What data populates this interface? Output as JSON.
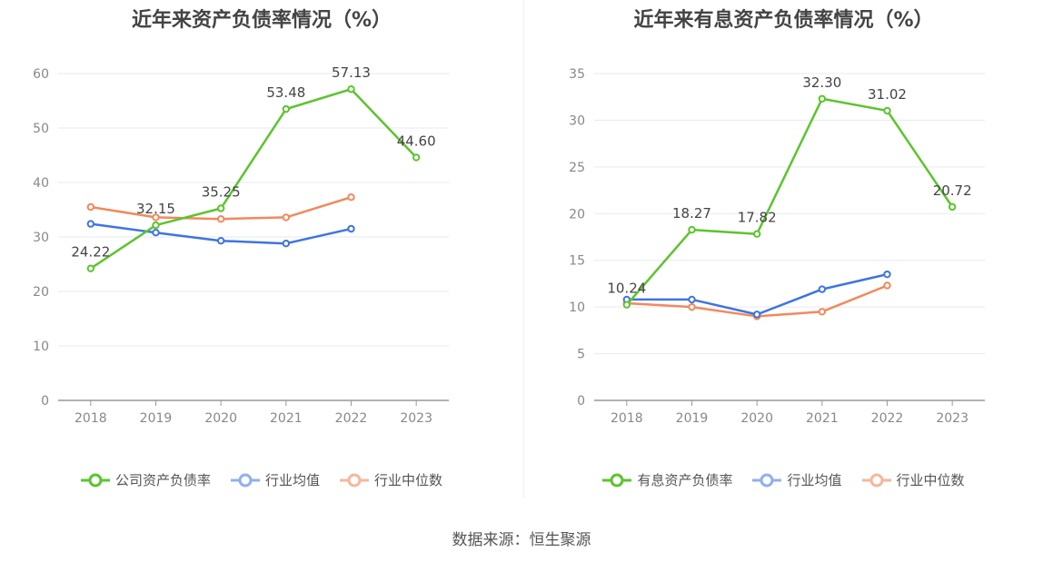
{
  "colors": {
    "company": "#5cc42e",
    "industry_avg": "#3f74e0",
    "industry_median": "#f2895c"
  },
  "source_label": "数据来源：恒生聚源",
  "chart_data": [
    {
      "type": "line",
      "title": "近年来资产负债率情况（%）",
      "categories": [
        "2018",
        "2019",
        "2020",
        "2021",
        "2022",
        "2023"
      ],
      "ylim": [
        0,
        60
      ],
      "yticks": [
        0,
        10,
        20,
        30,
        40,
        50,
        60
      ],
      "grid": true,
      "legend_position": "bottom",
      "series": [
        {
          "name": "公司资产负债率",
          "color_key": "company",
          "values": [
            24.22,
            32.15,
            35.25,
            53.48,
            57.13,
            44.6
          ],
          "labels": [
            "24.22",
            "32.15",
            "35.25",
            "53.48",
            "57.13",
            "44.60"
          ]
        },
        {
          "name": "行业均值",
          "color_key": "industry_avg",
          "values": [
            32.4,
            30.8,
            29.3,
            28.8,
            31.5,
            null
          ]
        },
        {
          "name": "行业中位数",
          "color_key": "industry_median",
          "values": [
            35.5,
            33.6,
            33.3,
            33.6,
            37.3,
            null
          ]
        }
      ]
    },
    {
      "type": "line",
      "title": "近年来有息资产负债率情况（%）",
      "categories": [
        "2018",
        "2019",
        "2020",
        "2021",
        "2022",
        "2023"
      ],
      "ylim": [
        0,
        35
      ],
      "yticks": [
        0,
        5,
        10,
        15,
        20,
        25,
        30,
        35
      ],
      "grid": true,
      "legend_position": "bottom",
      "series": [
        {
          "name": "有息资产负债率",
          "color_key": "company",
          "values": [
            10.24,
            18.27,
            17.82,
            32.3,
            31.02,
            20.72
          ],
          "labels": [
            "10.24",
            "18.27",
            "17.82",
            "32.30",
            "31.02",
            "20.72"
          ]
        },
        {
          "name": "行业均值",
          "color_key": "industry_avg",
          "values": [
            10.8,
            10.8,
            9.2,
            11.9,
            13.5,
            null
          ]
        },
        {
          "name": "行业中位数",
          "color_key": "industry_median",
          "values": [
            10.4,
            10.0,
            9.0,
            9.5,
            12.3,
            null
          ]
        }
      ]
    }
  ]
}
